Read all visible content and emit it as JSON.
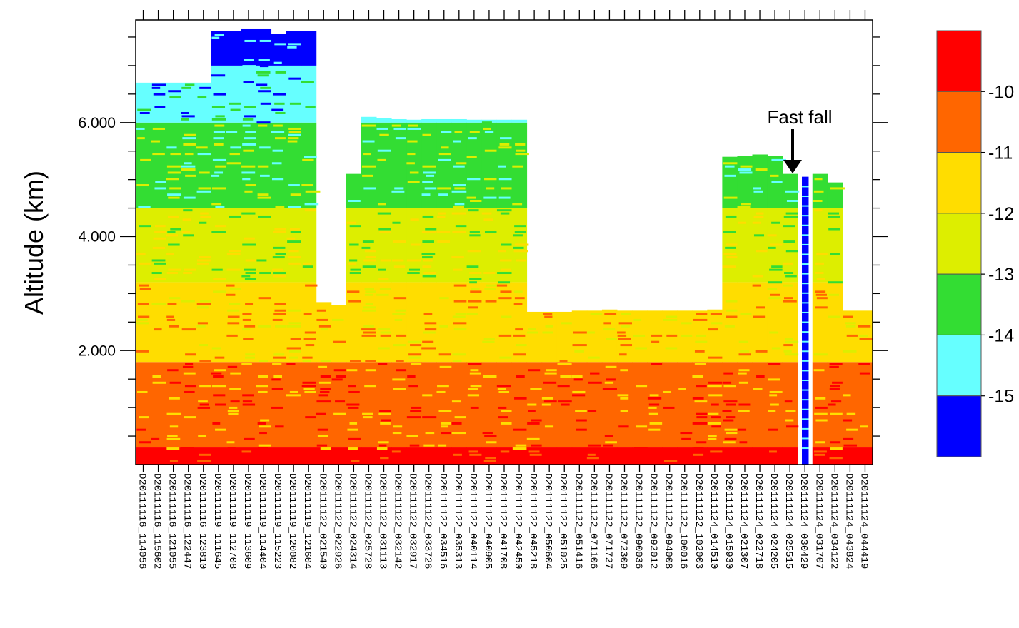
{
  "chart_data": {
    "type": "heatmap",
    "ylabel": "Altitude (km)",
    "ylim": [
      0,
      7.8
    ],
    "yticks": [
      2.0,
      4.0,
      6.0
    ],
    "yticklabels": [
      "2.000",
      "4.000",
      "6.000"
    ],
    "annotation": {
      "text": "Fast fall",
      "category": "D20111124_030429"
    },
    "colors": [
      "#0000ff",
      "#66ffff",
      "#33dd33",
      "#ddee00",
      "#ffdd00",
      "#ff6600",
      "#ff0000"
    ],
    "colorbar_labels": [
      "-15",
      "-14",
      "-13",
      "-12",
      "-11",
      "-10"
    ],
    "categories": [
      "D20111116_114056",
      "D20111116_115602",
      "D20111116_121055",
      "D20111116_122447",
      "D20111116_123810",
      "D20111119_111645",
      "D20111119_112708",
      "D20111119_113609",
      "D20111119_114404",
      "D20111119_115223",
      "D20111119_120082",
      "D20111119_121604",
      "D20111122_021540",
      "D20111122_022926",
      "D20111122_024314",
      "D20111122_025728",
      "D20111122_031113",
      "D20111122_032142",
      "D20111122_032917",
      "D20111122_033726",
      "D20111122_034516",
      "D20111122_035313",
      "D20111122_040114",
      "D20111122_040905",
      "D20111122_041708",
      "D20111122_042450",
      "D20111122_045218",
      "D20111122_050604",
      "D20111122_051025",
      "D20111122_051416",
      "D20111122_071106",
      "D20111122_071727",
      "D20111122_072309",
      "D20111122_090036",
      "D20111122_092012",
      "D20111122_094008",
      "D20111122_100016",
      "D20111122_102003",
      "D20111124_014510",
      "D20111124_015930",
      "D20111124_021307",
      "D20111124_022718",
      "D20111124_024205",
      "D20111124_025515",
      "D20111124_030429",
      "D20111124_031707",
      "D20111124_034122",
      "D20111124_043824",
      "D20111124_044419"
    ],
    "column_tops_km": [
      6.7,
      6.7,
      6.7,
      6.7,
      6.7,
      7.6,
      7.6,
      7.65,
      7.65,
      7.55,
      7.6,
      7.6,
      2.85,
      2.8,
      5.1,
      6.1,
      6.08,
      6.06,
      6.05,
      6.06,
      6.06,
      6.06,
      6.05,
      6.05,
      6.05,
      6.05,
      2.68,
      2.68,
      2.68,
      2.7,
      2.7,
      2.72,
      2.7,
      2.7,
      2.7,
      2.7,
      2.7,
      2.7,
      2.72,
      5.4,
      5.42,
      5.44,
      5.42,
      5.1,
      5.05,
      5.1,
      4.95,
      2.7,
      2.7
    ],
    "fast_fall_column": "D20111124_030429"
  }
}
